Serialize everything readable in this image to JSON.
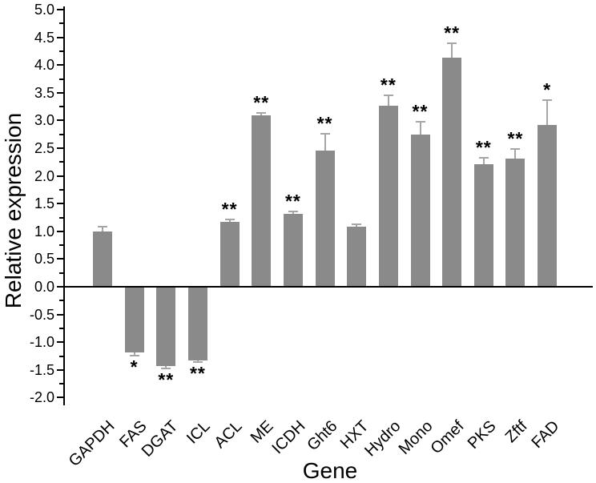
{
  "figure": {
    "kind": "scientific-bar-figure",
    "background_color": "#ffffff"
  },
  "chart_data": {
    "type": "bar",
    "title": "",
    "xlabel": "Gene",
    "ylabel": "Relative expression",
    "categories": [
      "GAPDH",
      "FAS",
      "DGAT",
      "ICL",
      "ACL",
      "ME",
      "ICDH",
      "Ght6",
      "HXT",
      "Hydro",
      "Mono",
      "Omef",
      "PKS",
      "Zftf",
      "FAD"
    ],
    "values": [
      1.0,
      -1.18,
      -1.43,
      -1.33,
      1.17,
      3.09,
      1.31,
      2.46,
      1.08,
      3.27,
      2.75,
      4.13,
      2.21,
      2.31,
      2.92
    ],
    "errors": [
      0.09,
      0.06,
      0.04,
      0.03,
      0.05,
      0.04,
      0.05,
      0.3,
      0.05,
      0.19,
      0.22,
      0.26,
      0.11,
      0.18,
      0.45
    ],
    "significance": [
      "",
      "*",
      "**",
      "**",
      "**",
      "**",
      "**",
      "**",
      "",
      "**",
      "**",
      "**",
      "**",
      "**",
      "*"
    ],
    "ylim": [
      -2.0,
      5.0
    ],
    "ytick_step": 0.5,
    "ytick_minor_step": 0.25,
    "ytick_labels": [
      "5.0",
      "4.5",
      "4.0",
      "3.5",
      "3.0",
      "2.5",
      "2.0",
      "1.5",
      "1.0",
      "0.5",
      "0.0",
      "-0.5",
      "-1.0",
      "-1.5",
      "-2.0"
    ],
    "error_bar_style": "one-sided-with-cap",
    "bar_color": "#8a8a8a",
    "error_bar_color": "#a6a6a6",
    "axis_color": "#000000",
    "grid": false,
    "legend": null
  }
}
